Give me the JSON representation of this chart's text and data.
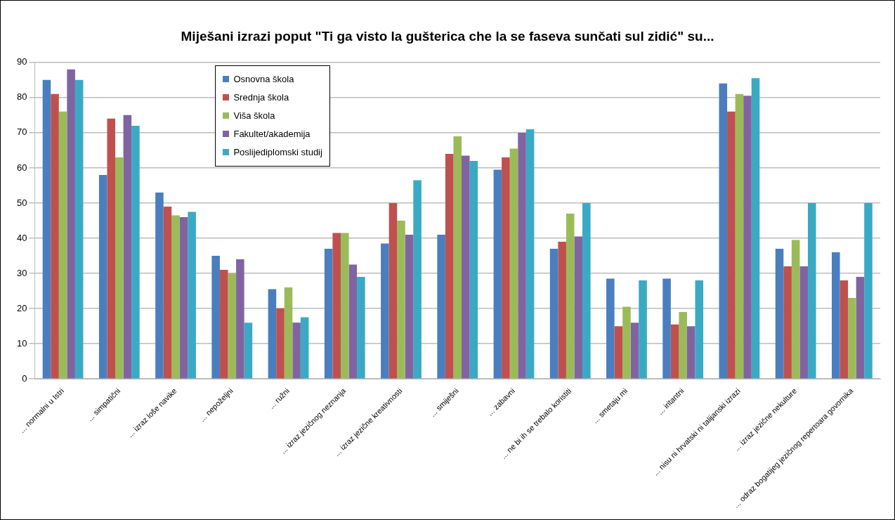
{
  "chart_data": {
    "type": "bar",
    "title": "Miješani izrazi poput \"Ti ga visto la gušterica che la se faseva sunčati sul zidić\" su...",
    "categories": [
      "... normalni u Istri",
      "... simpatični",
      "... izraz loše navike",
      "... nepoželjni",
      "... ružni",
      "... izraz jezičnog neznanja",
      "... izraz jezične kreativnosti",
      "... smiješni",
      "... zabavni",
      "... ne bi ih se trebalo koristiti",
      "... smetaju mi",
      "... iritantni",
      "... nisu ni hrvatski ni talijanski izrazi",
      "... izraz jezične nekulture",
      "... odraz bogatijeg jezičnog repertoara govornika"
    ],
    "series": [
      {
        "name": "Osnovna škola",
        "color": "#4a7ebf",
        "values": [
          85,
          58,
          53,
          35,
          25.5,
          37,
          38.5,
          41,
          59.5,
          37,
          28.5,
          28.5,
          84,
          37,
          36
        ]
      },
      {
        "name": "Srednja škola",
        "color": "#c0504d",
        "values": [
          81,
          74,
          49,
          31,
          20,
          41.5,
          50,
          64,
          63,
          39,
          15,
          15.5,
          76,
          32,
          28
        ]
      },
      {
        "name": "Viša škola",
        "color": "#9bbb59",
        "values": [
          76,
          63,
          46.5,
          30,
          26,
          41.5,
          45,
          69,
          65.5,
          47,
          20.5,
          19,
          81,
          39.5,
          23
        ]
      },
      {
        "name": "Fakultet/akademija",
        "color": "#8064a2",
        "values": [
          88,
          75,
          46,
          34,
          16,
          32.5,
          41,
          63.5,
          70,
          40.5,
          16,
          15,
          80.5,
          32,
          29
        ]
      },
      {
        "name": "Poslijediplomski studij",
        "color": "#3aaac4",
        "values": [
          85,
          72,
          47.5,
          16,
          17.5,
          29,
          56.5,
          62,
          71,
          50,
          28,
          28,
          85.5,
          50,
          50
        ]
      }
    ],
    "ylim": [
      0,
      90
    ],
    "yticks": [
      0,
      10,
      20,
      30,
      40,
      50,
      60,
      70,
      80,
      90
    ],
    "grid": "y",
    "legend": "top"
  }
}
